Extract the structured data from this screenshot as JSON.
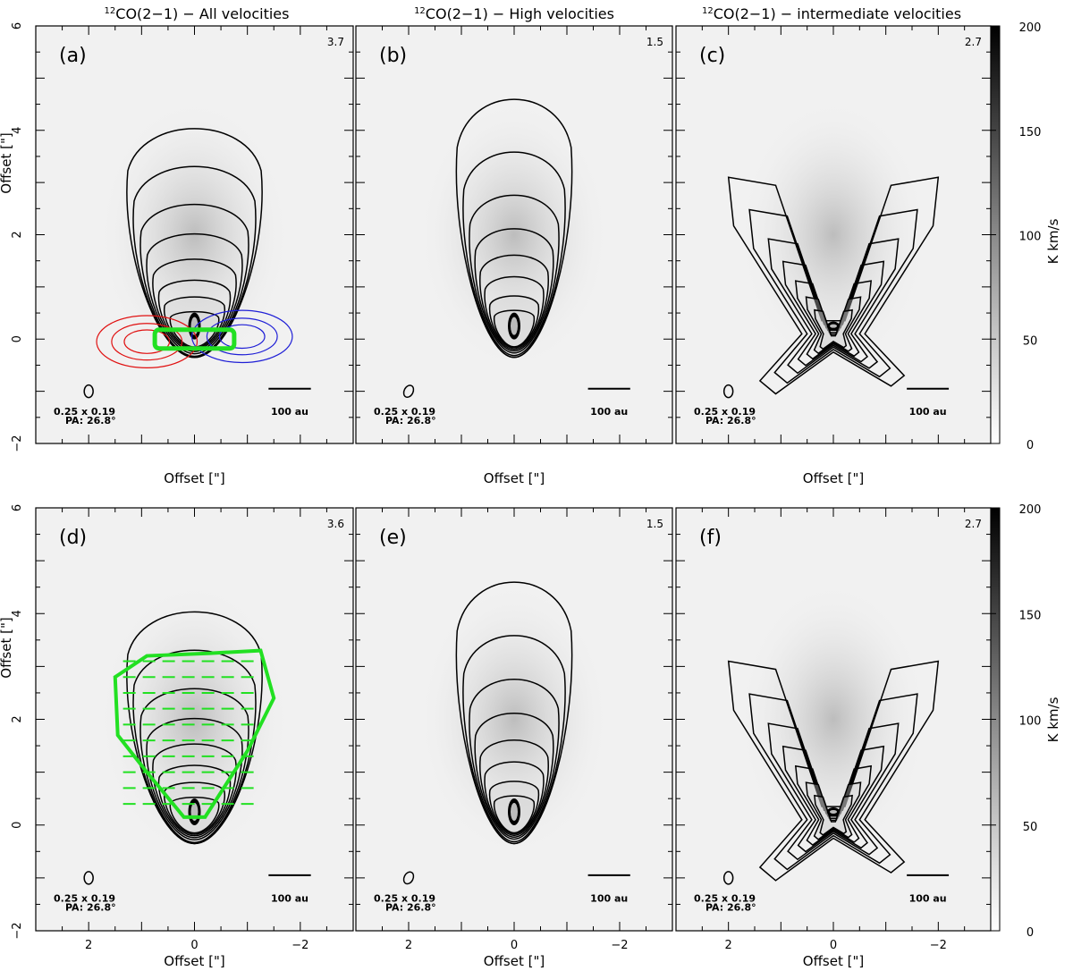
{
  "titles": {
    "col1": "CO(2−1) − All velocities",
    "col2": "CO(2−1) − High velocities",
    "col3": "CO(2−1) − intermediate velocities",
    "isotope": "12"
  },
  "axes": {
    "ylabel": "Offset [\"]",
    "xlabel": "Offset [\"]",
    "xticks": [
      "2",
      "0",
      "−2"
    ],
    "yticks": [
      "6",
      "4",
      "2",
      "0",
      "−2"
    ]
  },
  "beam": {
    "size": "0.25 x 0.19",
    "pa": "PA: 26.8°",
    "scalebar": "100 au"
  },
  "colorbar": {
    "label": "K km/s",
    "ticks": [
      "200",
      "150",
      "100",
      "50",
      "0"
    ]
  },
  "colors": {
    "contour": "#000000",
    "blue": "#1f1fd6",
    "red": "#e01010",
    "green": "#22e022",
    "background": "#f0f0f0"
  },
  "chart_data": [
    {
      "type": "heatmap",
      "panel": "(a)",
      "title": "CO(2−1) − All velocities",
      "peak_label": "3.7",
      "xlabel": "Offset [\"]",
      "ylabel": "Offset [\"]",
      "xlim": [
        3,
        -3
      ],
      "ylim": [
        -2,
        6
      ],
      "overlay": "blue and red lobe contours, green box"
    },
    {
      "type": "heatmap",
      "panel": "(b)",
      "title": "CO(2−1) − High velocities",
      "peak_label": "1.5",
      "xlabel": "Offset [\"]",
      "xlim": [
        3,
        -3
      ],
      "ylim": [
        -2,
        6
      ]
    },
    {
      "type": "heatmap",
      "panel": "(c)",
      "title": "CO(2−1) − intermediate velocities",
      "peak_label": "2.7",
      "xlabel": "Offset [\"]",
      "xlim": [
        3,
        -3
      ],
      "ylim": [
        -2,
        6
      ],
      "colorbar": [
        0,
        200
      ]
    },
    {
      "type": "heatmap",
      "panel": "(d)",
      "peak_label": "3.6",
      "xlabel": "Offset [\"]",
      "ylabel": "Offset [\"]",
      "xlim": [
        3,
        -3
      ],
      "ylim": [
        -2,
        6
      ],
      "overlay": "green hatched region"
    },
    {
      "type": "heatmap",
      "panel": "(e)",
      "peak_label": "1.5",
      "xlabel": "Offset [\"]",
      "xlim": [
        3,
        -3
      ],
      "ylim": [
        -2,
        6
      ]
    },
    {
      "type": "heatmap",
      "panel": "(f)",
      "peak_label": "2.7",
      "xlabel": "Offset [\"]",
      "xlim": [
        3,
        -3
      ],
      "ylim": [
        -2,
        6
      ],
      "colorbar": [
        0,
        200
      ]
    }
  ]
}
